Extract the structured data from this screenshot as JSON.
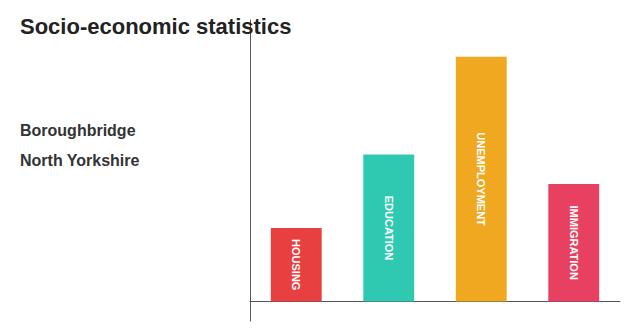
{
  "chart_data": {
    "type": "bar",
    "title": "Socio-economic statistics",
    "subtitle": [
      "Boroughbridge",
      "North Yorkshire"
    ],
    "categories": [
      "HOUSING",
      "EDUCATION",
      "UNEMPLOYMENT",
      "IMMIGRATION"
    ],
    "values": [
      0.3,
      0.6,
      1.0,
      0.48
    ],
    "colors": [
      "#e84040",
      "#2ec9b0",
      "#f0a820",
      "#e84060"
    ],
    "ylim": [
      -0.08,
      1.15
    ],
    "tick_labels": false,
    "grid": false,
    "data_labels": false
  }
}
